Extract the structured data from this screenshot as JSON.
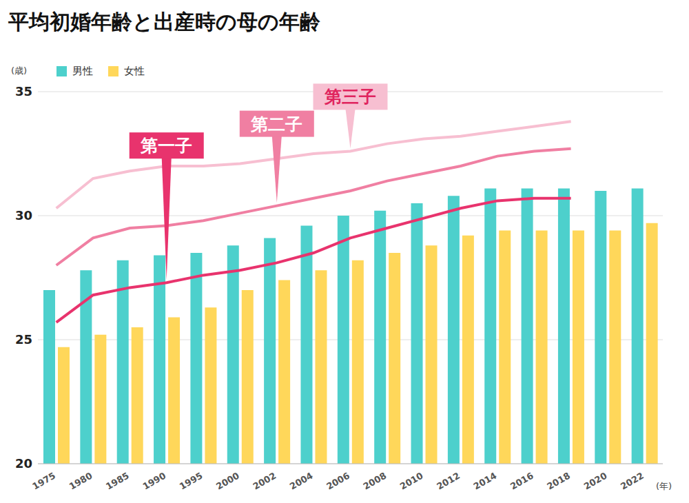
{
  "chart_data": {
    "type": "bar",
    "title": "平均初婚年齢と出産時の母の年齢",
    "y_label": "(歳)",
    "x_label": "(年)",
    "categories": [
      "1975",
      "1980",
      "1985",
      "1990",
      "1995",
      "2000",
      "2002",
      "2004",
      "2006",
      "2008",
      "2010",
      "2012",
      "2014",
      "2016",
      "2018",
      "2020",
      "2022"
    ],
    "series": [
      {
        "name": "男性",
        "type": "bar",
        "color": "#4dd0cc",
        "values": [
          27.0,
          27.8,
          28.2,
          28.4,
          28.5,
          28.8,
          29.1,
          29.6,
          30.0,
          30.2,
          30.5,
          30.8,
          31.1,
          31.1,
          31.1,
          31.0,
          31.1
        ]
      },
      {
        "name": "女性",
        "type": "bar",
        "color": "#ffd75a",
        "values": [
          24.7,
          25.2,
          25.5,
          25.9,
          26.3,
          27.0,
          27.4,
          27.8,
          28.2,
          28.5,
          28.8,
          29.2,
          29.4,
          29.4,
          29.4,
          29.4,
          29.7
        ]
      },
      {
        "name": "第一子",
        "type": "line",
        "color": "#e8336d",
        "values": [
          25.7,
          26.8,
          27.1,
          27.3,
          27.6,
          27.8,
          28.1,
          28.5,
          29.1,
          29.5,
          29.9,
          30.3,
          30.6,
          30.7,
          30.7,
          null,
          null
        ]
      },
      {
        "name": "第二子",
        "type": "line",
        "color": "#f07fa2",
        "values": [
          28.0,
          29.1,
          29.5,
          29.6,
          29.8,
          30.1,
          30.4,
          30.7,
          31.0,
          31.4,
          31.7,
          32.0,
          32.4,
          32.6,
          32.7,
          null,
          null
        ]
      },
      {
        "name": "第三子",
        "type": "line",
        "color": "#f7bfd1",
        "values": [
          30.3,
          31.5,
          31.8,
          32.0,
          32.0,
          32.1,
          32.3,
          32.5,
          32.6,
          32.9,
          33.1,
          33.2,
          33.4,
          33.6,
          33.8,
          null,
          null
        ]
      }
    ],
    "ylim": [
      20,
      35
    ],
    "yticks": [
      20,
      25,
      30,
      35
    ],
    "grid": true,
    "legend": "top-left"
  }
}
